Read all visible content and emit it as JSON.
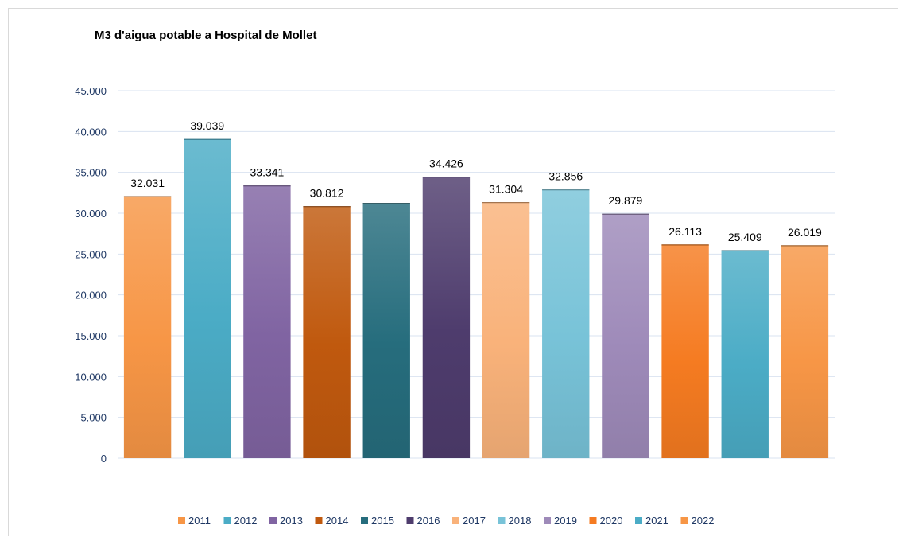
{
  "chart_data": {
    "type": "bar",
    "title": "M3 d'aigua potable a Hospital de Mollet",
    "xlabel": "",
    "ylabel": "",
    "ylim": [
      0,
      45000
    ],
    "yticks": [
      0,
      5000,
      10000,
      15000,
      20000,
      25000,
      30000,
      35000,
      40000,
      45000
    ],
    "ytick_labels": [
      "0",
      "5.000",
      "10.000",
      "15.000",
      "20.000",
      "25.000",
      "30.000",
      "35.000",
      "40.000",
      "45.000"
    ],
    "grid": true,
    "legend_position": "bottom",
    "series": [
      {
        "name": "2011",
        "value": 32031,
        "label": "32.031",
        "color": "#f79646"
      },
      {
        "name": "2012",
        "value": 39039,
        "label": "39.039",
        "color": "#4bacc6"
      },
      {
        "name": "2013",
        "value": 33341,
        "label": "33.341",
        "color": "#8064a2"
      },
      {
        "name": "2014",
        "value": 30812,
        "label": "30.812",
        "color": "#c0590e"
      },
      {
        "name": "2015",
        "value": 31200,
        "label": "",
        "color": "#266d7d"
      },
      {
        "name": "2016",
        "value": 34426,
        "label": "34.426",
        "color": "#4e3c6d"
      },
      {
        "name": "2017",
        "value": 31304,
        "label": "31.304",
        "color": "#f9b27a"
      },
      {
        "name": "2018",
        "value": 32856,
        "label": "32.856",
        "color": "#78c3d8"
      },
      {
        "name": "2019",
        "value": 29879,
        "label": "29.879",
        "color": "#9e8ab9"
      },
      {
        "name": "2020",
        "value": 26113,
        "label": "26.113",
        "color": "#f57b21"
      },
      {
        "name": "2021",
        "value": 25409,
        "label": "25.409",
        "color": "#4bacc6"
      },
      {
        "name": "2022",
        "value": 26019,
        "label": "26.019",
        "color": "#f79646"
      }
    ]
  }
}
